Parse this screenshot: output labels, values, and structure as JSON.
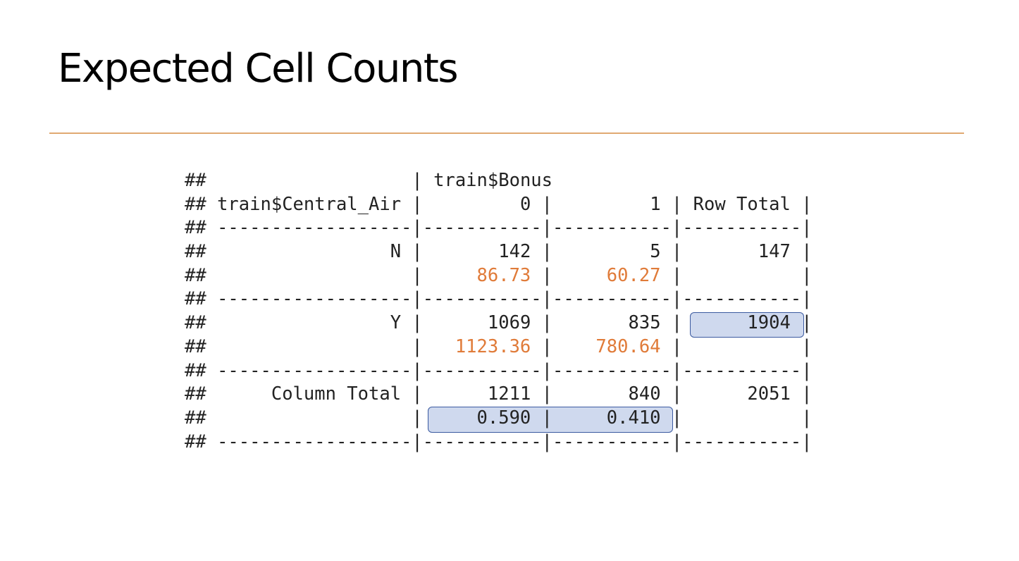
{
  "slide": {
    "title": "Expected Cell Counts"
  },
  "crosstab": {
    "comment_prefix": "##",
    "row_variable": "train$Central_Air",
    "column_variable": "train$Bonus",
    "column_headers": [
      "0",
      "1",
      "Row Total"
    ],
    "column_total_label": "Column Total",
    "rows": [
      {
        "label": "N",
        "counts": [
          "142",
          "5"
        ],
        "row_total": "147",
        "expected": [
          "86.73",
          "60.27"
        ]
      },
      {
        "label": "Y",
        "counts": [
          "1069",
          "835"
        ],
        "row_total": "1904",
        "expected": [
          "1123.36",
          "780.64"
        ]
      }
    ],
    "column_totals": [
      "1211",
      "840"
    ],
    "grand_total": "2051",
    "column_proportions": [
      "0.590",
      "0.410"
    ]
  },
  "colors": {
    "accent_rule": "#e0a972",
    "expected_text": "#e07b39",
    "highlight_fill": "#c9d4ea",
    "highlight_border": "#3b5aa0"
  }
}
